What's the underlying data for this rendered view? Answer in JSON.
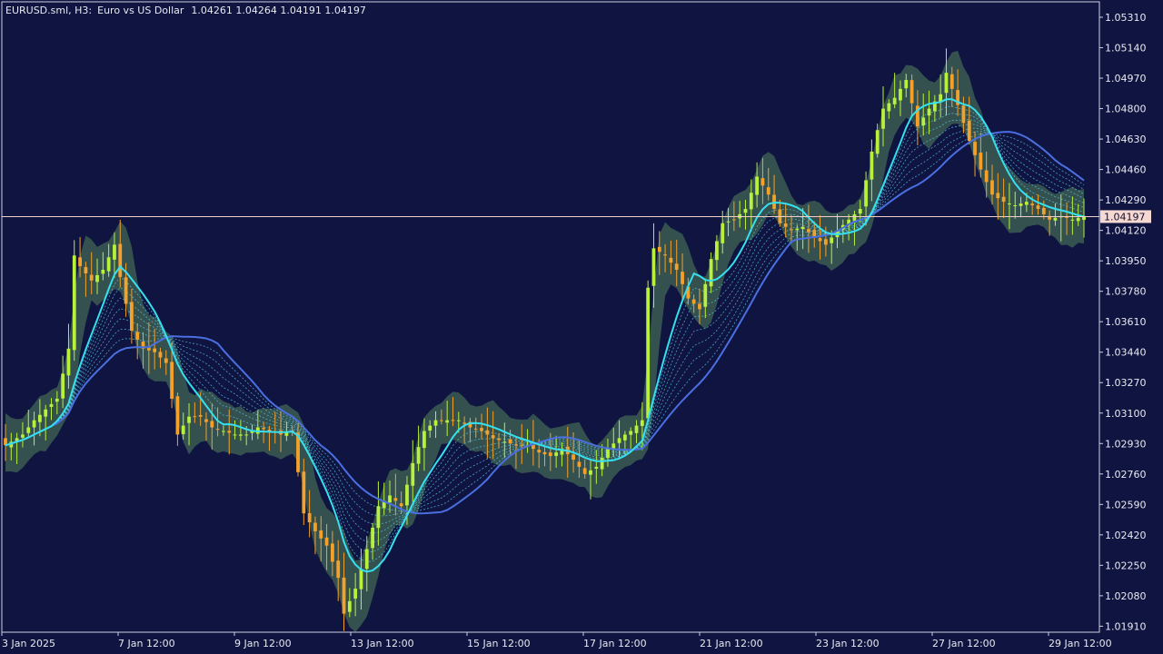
{
  "header": {
    "symbol": "EURUSD.sml, H3:",
    "description": "Euro vs US Dollar",
    "ohlc": "1.04261 1.04264 1.04191 1.04197"
  },
  "colors": {
    "background": "#0f1440",
    "frame": "#cfcfe0",
    "bull": "#b8f03c",
    "bear": "#f4a12a",
    "band_fill": "#3b5c52",
    "fast_ma": "#35e0f0",
    "slow_ma": "#4a6fe0",
    "ribbon": "#56c6e8",
    "last_price_line": "#f0d0c8",
    "last_price_bg": "#f5d8d2",
    "text": "#e9e9f1"
  },
  "chart_data": {
    "type": "candlestick",
    "symbol": "EURUSD.sml",
    "timeframe": "H3",
    "last_price": "1.04197",
    "y_ticks": [
      "1.05310",
      "1.05140",
      "1.04970",
      "1.04800",
      "1.04630",
      "1.04460",
      "1.04290",
      "1.04120",
      "1.03950",
      "1.03780",
      "1.03610",
      "1.03440",
      "1.03270",
      "1.03100",
      "1.02930",
      "1.02760",
      "1.02590",
      "1.02420",
      "1.02250",
      "1.02080",
      "1.01910"
    ],
    "x_ticks": [
      "3 Jan 2025",
      "7 Jan 12:00",
      "9 Jan 12:00",
      "13 Jan 12:00",
      "15 Jan 12:00",
      "17 Jan 12:00",
      "21 Jan 12:00",
      "23 Jan 12:00",
      "27 Jan 12:00",
      "29 Jan 12:00"
    ],
    "ylim": [
      1.018,
      1.054
    ],
    "close_path": [
      [
        0,
        1.0292
      ],
      [
        3,
        1.0298
      ],
      [
        5,
        1.0306
      ],
      [
        7,
        1.0312
      ],
      [
        9,
        1.0318
      ],
      [
        11,
        1.0346
      ],
      [
        12,
        1.0398
      ],
      [
        13,
        1.0392
      ],
      [
        15,
        1.0384
      ],
      [
        17,
        1.039
      ],
      [
        19,
        1.0404
      ],
      [
        20,
        1.0386
      ],
      [
        22,
        1.0356
      ],
      [
        24,
        1.0346
      ],
      [
        26,
        1.0344
      ],
      [
        28,
        1.0338
      ],
      [
        30,
        1.0298
      ],
      [
        32,
        1.0308
      ],
      [
        34,
        1.0308
      ],
      [
        36,
        1.0302
      ],
      [
        38,
        1.03
      ],
      [
        40,
        1.0298
      ],
      [
        42,
        1.0298
      ],
      [
        44,
        1.0302
      ],
      [
        46,
        1.03
      ],
      [
        48,
        1.0298
      ],
      [
        50,
        1.03
      ],
      [
        52,
        1.0254
      ],
      [
        54,
        1.0244
      ],
      [
        56,
        1.0236
      ],
      [
        58,
        1.0218
      ],
      [
        59,
        1.0198
      ],
      [
        61,
        1.0212
      ],
      [
        63,
        1.0234
      ],
      [
        65,
        1.0258
      ],
      [
        67,
        1.0264
      ],
      [
        69,
        1.0258
      ],
      [
        71,
        1.0282
      ],
      [
        73,
        1.03
      ],
      [
        75,
        1.0306
      ],
      [
        77,
        1.0306
      ],
      [
        79,
        1.0306
      ],
      [
        81,
        1.0302
      ],
      [
        83,
        1.03
      ],
      [
        85,
        1.0296
      ],
      [
        87,
        1.0294
      ],
      [
        89,
        1.0292
      ],
      [
        91,
        1.0292
      ],
      [
        93,
        1.0288
      ],
      [
        95,
        1.0286
      ],
      [
        97,
        1.029
      ],
      [
        99,
        1.0284
      ],
      [
        101,
        1.0276
      ],
      [
        103,
        1.028
      ],
      [
        105,
        1.029
      ],
      [
        107,
        1.0296
      ],
      [
        109,
        1.03
      ],
      [
        111,
        1.0306
      ],
      [
        112,
        1.038
      ],
      [
        113,
        1.0402
      ],
      [
        115,
        1.0398
      ],
      [
        117,
        1.039
      ],
      [
        119,
        1.0374
      ],
      [
        121,
        1.0368
      ],
      [
        123,
        1.0396
      ],
      [
        125,
        1.0416
      ],
      [
        127,
        1.0418
      ],
      [
        129,
        1.0424
      ],
      [
        131,
        1.0442
      ],
      [
        133,
        1.0432
      ],
      [
        135,
        1.0416
      ],
      [
        137,
        1.0412
      ],
      [
        139,
        1.0414
      ],
      [
        141,
        1.0408
      ],
      [
        143,
        1.0404
      ],
      [
        145,
        1.0412
      ],
      [
        147,
        1.0418
      ],
      [
        149,
        1.0424
      ],
      [
        151,
        1.0456
      ],
      [
        153,
        1.048
      ],
      [
        155,
        1.0486
      ],
      [
        157,
        1.0496
      ],
      [
        159,
        1.047
      ],
      [
        161,
        1.048
      ],
      [
        163,
        1.0488
      ],
      [
        164,
        1.05
      ],
      [
        166,
        1.0482
      ],
      [
        168,
        1.0462
      ],
      [
        170,
        1.0446
      ],
      [
        172,
        1.0432
      ],
      [
        174,
        1.0428
      ],
      [
        176,
        1.0426
      ],
      [
        178,
        1.0428
      ],
      [
        180,
        1.0424
      ],
      [
        182,
        1.0418
      ],
      [
        184,
        1.042
      ],
      [
        186,
        1.0418
      ],
      [
        188,
        1.042
      ]
    ],
    "bar_count": 189,
    "fast_ma_name": "",
    "slow_ma_name": ""
  }
}
